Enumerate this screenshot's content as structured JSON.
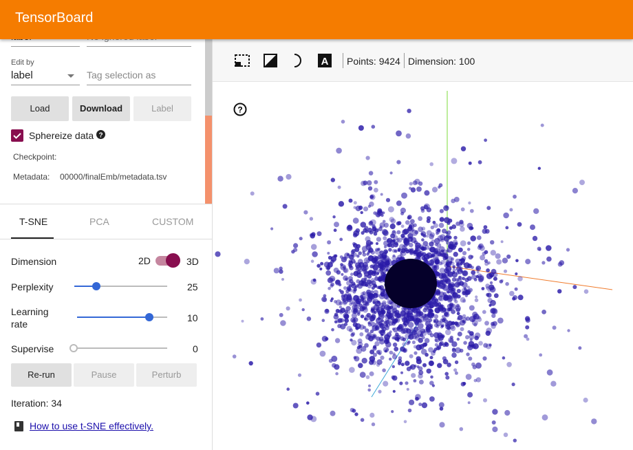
{
  "header": {
    "title": "TensorBoard"
  },
  "data_panel": {
    "label_field": "label",
    "ignored_field": "No ignored label",
    "edit_by_label": "Edit by",
    "edit_by_value": "label",
    "tag_placeholder": "Tag selection as",
    "buttons": [
      "Load",
      "Download",
      "Label"
    ],
    "sphereize": "Sphereize data",
    "checkpoint_label": "Checkpoint:",
    "metadata_label": "Metadata:",
    "metadata_value": "00000/finalEmb/metadata.tsv"
  },
  "tabs": [
    "T-SNE",
    "PCA",
    "CUSTOM"
  ],
  "tsne": {
    "dimension_label": "Dimension",
    "dim_2d": "2D",
    "dim_3d": "3D",
    "perplexity_label": "Perplexity",
    "perplexity_value": "25",
    "learning_rate_label": "Learning rate",
    "learning_rate_value": "10",
    "supervise_label": "Supervise",
    "supervise_value": "0",
    "buttons": [
      "Re-run",
      "Pause",
      "Perturb"
    ],
    "iteration": "Iteration: 34",
    "help_link": "How to use t-SNE effectively."
  },
  "toolbar": {
    "points": "Points: 9424",
    "dimension": "Dimension: 100"
  }
}
